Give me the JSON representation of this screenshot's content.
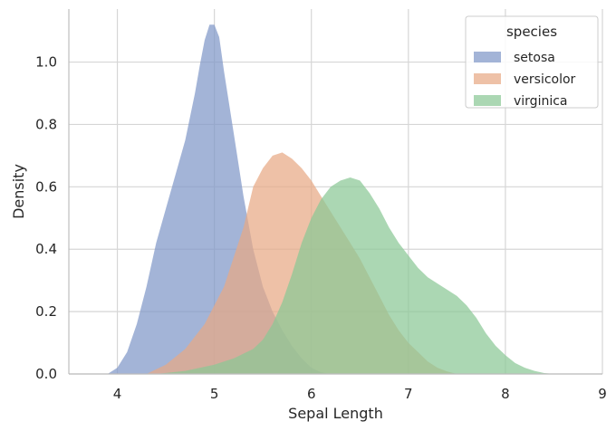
{
  "chart_data": {
    "type": "area",
    "kind": "kde",
    "xlabel": "Sepal Length",
    "ylabel": "Density",
    "xlim": [
      3.5,
      9.0
    ],
    "ylim": [
      0.0,
      1.17
    ],
    "x_ticks": [
      "4",
      "5",
      "6",
      "7",
      "8",
      "9"
    ],
    "y_ticks": [
      "0.0",
      "0.2",
      "0.4",
      "0.6",
      "0.8",
      "1.0"
    ],
    "grid": true,
    "legend": {
      "title": "species",
      "placement": "top-right"
    },
    "series": [
      {
        "name": "setosa",
        "color": "#7f97c8",
        "x": [
          3.9,
          4.0,
          4.1,
          4.2,
          4.3,
          4.4,
          4.5,
          4.6,
          4.7,
          4.8,
          4.85,
          4.9,
          4.95,
          5.0,
          5.05,
          5.1,
          5.2,
          5.3,
          5.4,
          5.5,
          5.6,
          5.7,
          5.8,
          5.9,
          6.0,
          6.1,
          6.2
        ],
        "y": [
          0.0,
          0.02,
          0.07,
          0.16,
          0.28,
          0.42,
          0.53,
          0.64,
          0.75,
          0.9,
          0.99,
          1.07,
          1.12,
          1.12,
          1.08,
          0.97,
          0.77,
          0.57,
          0.4,
          0.28,
          0.2,
          0.14,
          0.09,
          0.05,
          0.02,
          0.005,
          0.0
        ]
      },
      {
        "name": "versicolor",
        "color": "#e8a985",
        "x": [
          4.3,
          4.5,
          4.7,
          4.9,
          5.1,
          5.3,
          5.4,
          5.5,
          5.6,
          5.7,
          5.8,
          5.9,
          6.0,
          6.1,
          6.2,
          6.3,
          6.4,
          6.5,
          6.6,
          6.7,
          6.8,
          6.9,
          7.0,
          7.1,
          7.2,
          7.3,
          7.4,
          7.5
        ],
        "y": [
          0.0,
          0.03,
          0.08,
          0.16,
          0.28,
          0.47,
          0.6,
          0.66,
          0.7,
          0.71,
          0.69,
          0.66,
          0.62,
          0.57,
          0.52,
          0.47,
          0.42,
          0.37,
          0.31,
          0.25,
          0.19,
          0.14,
          0.1,
          0.07,
          0.04,
          0.02,
          0.008,
          0.0
        ]
      },
      {
        "name": "virginica",
        "color": "#8bc896",
        "x": [
          4.4,
          4.7,
          5.0,
          5.2,
          5.4,
          5.5,
          5.6,
          5.7,
          5.8,
          5.9,
          6.0,
          6.1,
          6.2,
          6.3,
          6.4,
          6.5,
          6.6,
          6.7,
          6.8,
          6.9,
          7.0,
          7.1,
          7.2,
          7.3,
          7.4,
          7.5,
          7.6,
          7.7,
          7.8,
          7.9,
          8.0,
          8.1,
          8.2,
          8.3,
          8.4,
          8.5
        ],
        "y": [
          0.0,
          0.01,
          0.03,
          0.05,
          0.08,
          0.11,
          0.16,
          0.23,
          0.32,
          0.42,
          0.5,
          0.56,
          0.6,
          0.62,
          0.63,
          0.62,
          0.58,
          0.53,
          0.47,
          0.42,
          0.38,
          0.34,
          0.31,
          0.29,
          0.27,
          0.25,
          0.22,
          0.18,
          0.13,
          0.09,
          0.06,
          0.035,
          0.02,
          0.01,
          0.003,
          0.0
        ]
      }
    ]
  }
}
